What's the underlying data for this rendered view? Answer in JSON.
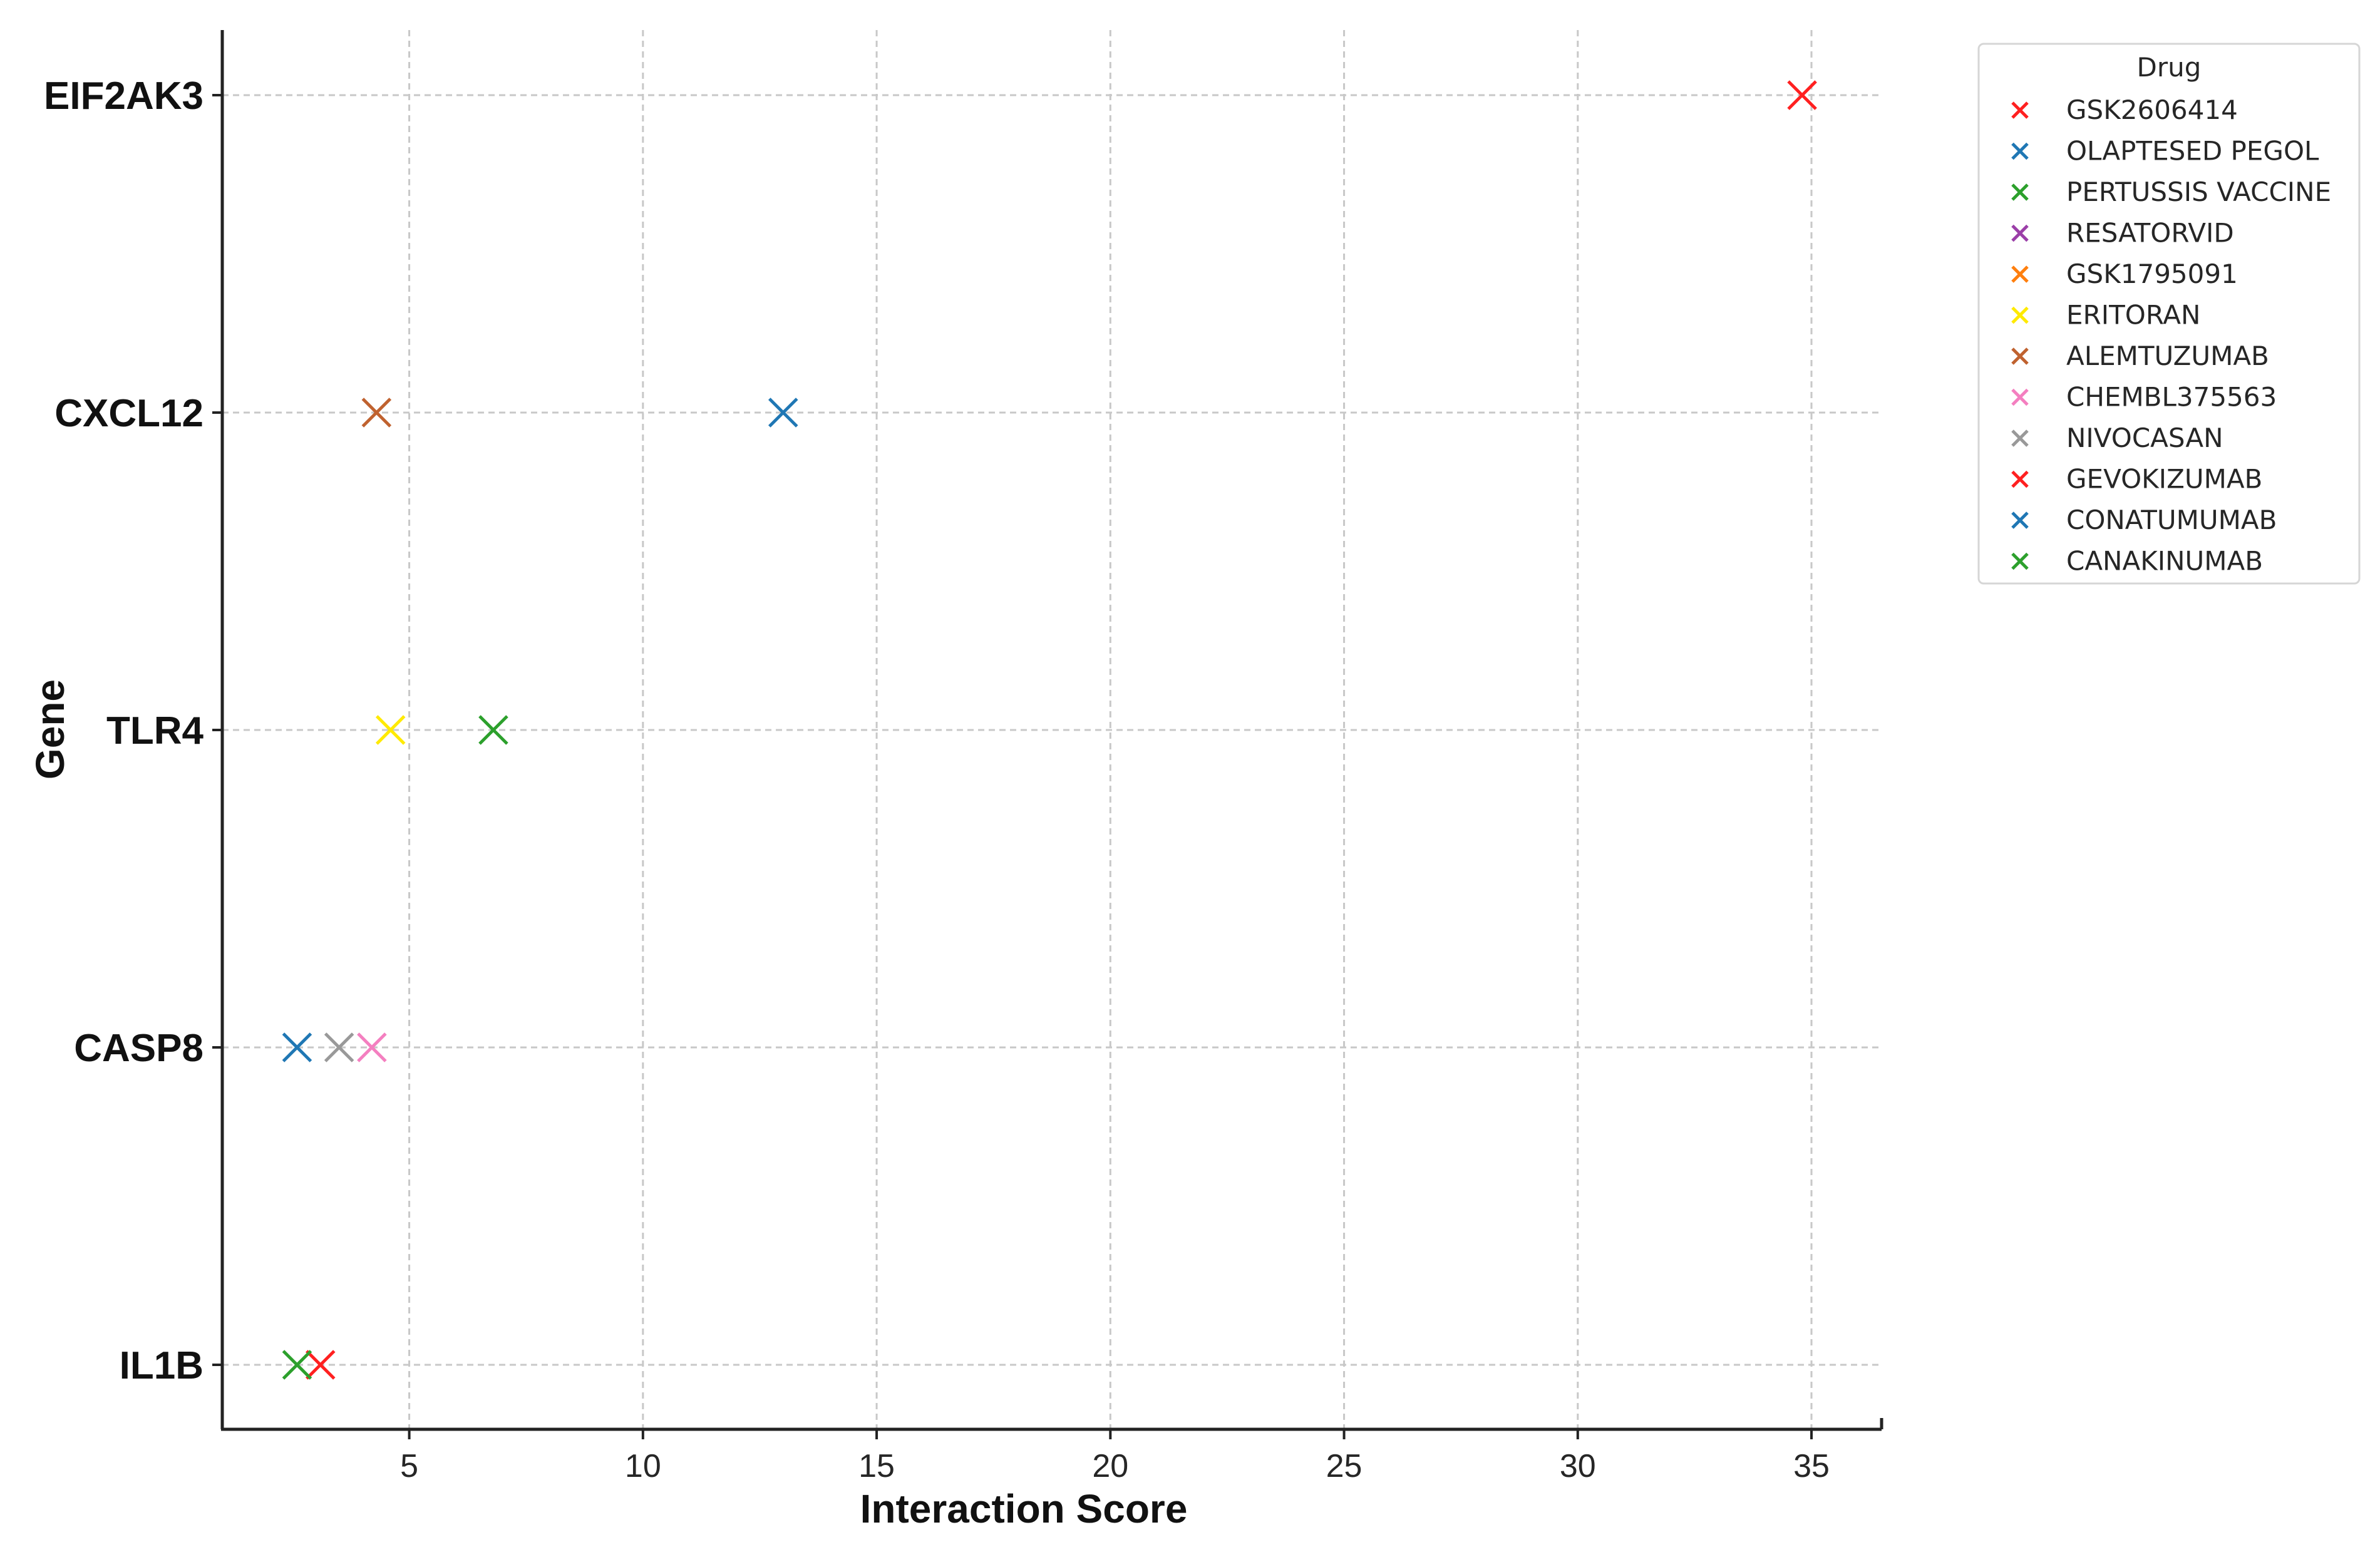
{
  "chart_data": {
    "type": "scatter",
    "xlabel": "Interaction Score",
    "ylabel": "Gene",
    "xlim": [
      1.0,
      36.5
    ],
    "xticks": [
      5,
      10,
      15,
      20,
      25,
      30,
      35
    ],
    "categories": [
      "EIF2AK3",
      "CXCL12",
      "TLR4",
      "CASP8",
      "IL1B"
    ],
    "grid": true,
    "marker": "x",
    "legend": {
      "title": "Drug",
      "placement": "outside-top-right"
    },
    "series": [
      {
        "name": "GSK2606414",
        "color": "#ff2020",
        "points": [
          {
            "x": 34.8,
            "y": "EIF2AK3"
          }
        ]
      },
      {
        "name": "OLAPTESED PEGOL",
        "color": "#1f77b4",
        "points": [
          {
            "x": 13.0,
            "y": "CXCL12"
          }
        ]
      },
      {
        "name": "PERTUSSIS VACCINE",
        "color": "#2ca02c",
        "points": [
          {
            "x": 6.8,
            "y": "TLR4"
          }
        ]
      },
      {
        "name": "RESATORVID",
        "color": "#9b3fa8",
        "points": []
      },
      {
        "name": "GSK1795091",
        "color": "#ff7f0e",
        "points": []
      },
      {
        "name": "ERITORAN",
        "color": "#ffea00",
        "points": [
          {
            "x": 4.6,
            "y": "TLR4"
          }
        ]
      },
      {
        "name": "ALEMTUZUMAB",
        "color": "#c0622f",
        "points": [
          {
            "x": 4.3,
            "y": "CXCL12"
          }
        ]
      },
      {
        "name": "CHEMBL375563",
        "color": "#f47fc0",
        "points": [
          {
            "x": 4.2,
            "y": "CASP8"
          }
        ]
      },
      {
        "name": "NIVOCASAN",
        "color": "#999999",
        "points": [
          {
            "x": 3.5,
            "y": "CASP8"
          }
        ]
      },
      {
        "name": "GEVOKIZUMAB",
        "color": "#ff2020",
        "points": [
          {
            "x": 3.1,
            "y": "IL1B"
          }
        ]
      },
      {
        "name": "CONATUMUMAB",
        "color": "#1f77b4",
        "points": [
          {
            "x": 2.6,
            "y": "CASP8"
          }
        ]
      },
      {
        "name": "CANAKINUMAB",
        "color": "#2ca02c",
        "points": [
          {
            "x": 2.6,
            "y": "IL1B"
          }
        ]
      }
    ]
  }
}
